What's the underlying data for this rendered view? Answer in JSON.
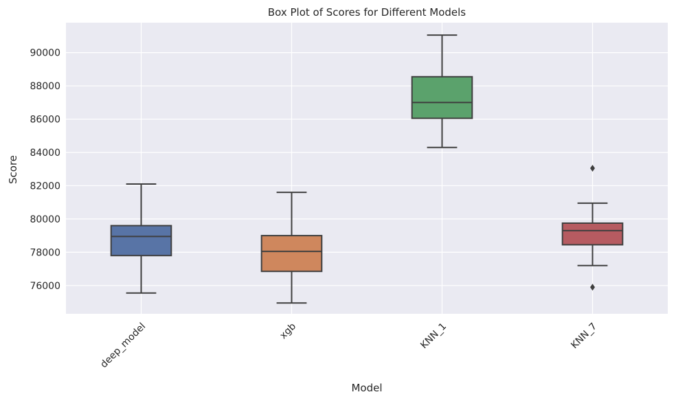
{
  "chart_data": {
    "type": "box",
    "title": "Box Plot of Scores for Different Models",
    "xlabel": "Model",
    "ylabel": "Score",
    "ylim": [
      74300,
      91800
    ],
    "yticks": [
      76000,
      78000,
      80000,
      82000,
      84000,
      86000,
      88000,
      90000
    ],
    "grid": true,
    "background": "#eaeaf2",
    "grid_color": "#ffffff",
    "line_color": "#3f3f3f",
    "categories": [
      "deep_model",
      "xgb",
      "KNN_1",
      "KNN_7"
    ],
    "boxes": [
      {
        "category": "deep_model",
        "whisker_low": 75550,
        "q1": 77800,
        "median": 78950,
        "q3": 79600,
        "whisker_high": 82100,
        "outliers": [],
        "color": "#5874a6"
      },
      {
        "category": "xgb",
        "whisker_low": 74950,
        "q1": 76850,
        "median": 78050,
        "q3": 79000,
        "whisker_high": 81600,
        "outliers": [],
        "color": "#cf875d"
      },
      {
        "category": "KNN_1",
        "whisker_low": 84300,
        "q1": 86050,
        "median": 87000,
        "q3": 88550,
        "whisker_high": 91050,
        "outliers": [],
        "color": "#5ba26c"
      },
      {
        "category": "KNN_7",
        "whisker_low": 77200,
        "q1": 78450,
        "median": 79300,
        "q3": 79750,
        "whisker_high": 80950,
        "outliers": [
          83050,
          75900
        ],
        "color": "#b65b61"
      }
    ]
  }
}
